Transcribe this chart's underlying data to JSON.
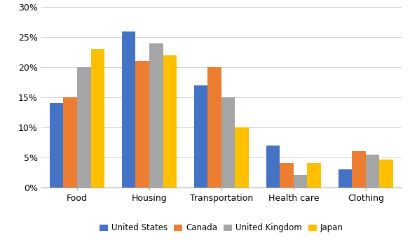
{
  "categories": [
    "Food",
    "Housing",
    "Transportation",
    "Health care",
    "Clothing"
  ],
  "series": [
    {
      "name": "United States",
      "values": [
        0.14,
        0.26,
        0.17,
        0.07,
        0.03
      ],
      "color": "#4472C4"
    },
    {
      "name": "Canada",
      "values": [
        0.15,
        0.21,
        0.2,
        0.04,
        0.06
      ],
      "color": "#ED7D31"
    },
    {
      "name": "United Kingdom",
      "values": [
        0.2,
        0.24,
        0.15,
        0.02,
        0.054
      ],
      "color": "#A5A5A5"
    },
    {
      "name": "Japan",
      "values": [
        0.23,
        0.22,
        0.1,
        0.04,
        0.046
      ],
      "color": "#FFC000"
    }
  ],
  "ylim": [
    0,
    0.3
  ],
  "yticks": [
    0.0,
    0.05,
    0.1,
    0.15,
    0.2,
    0.25,
    0.3
  ],
  "ytick_labels": [
    "0%",
    "5%",
    "10%",
    "15%",
    "20%",
    "25%",
    "30%"
  ],
  "bar_width": 0.19,
  "background_color": "#FFFFFF",
  "grid_color": "#D3D3D3",
  "axis_label_fontsize": 9,
  "legend_fontsize": 8.5
}
